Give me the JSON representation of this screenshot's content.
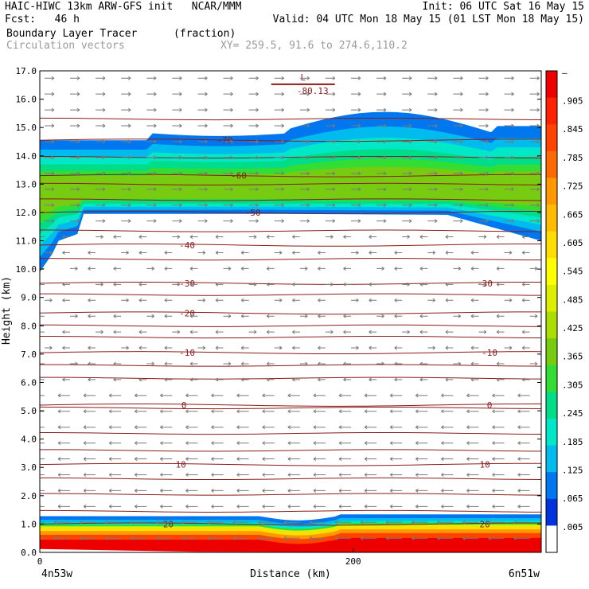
{
  "header": {
    "left_line1": "HAIC-HIWC 13km ARW-GFS init   NCAR/MMM",
    "left_line2": "Fcst:   46 h",
    "right_line1": "Init: 06 UTC Sat 16 May 15",
    "right_line2": "Valid: 04 UTC Mon 18 May 15 (01 LST Mon 18 May 15)",
    "field_name": "Boundary Layer Tracer",
    "field_units": "(fraction)",
    "vector_name": "Circulation vectors",
    "xy_label": "XY= 259.5, 91.6 to 274.6,110.2"
  },
  "chart_data": {
    "type": "heatmap",
    "title": "Boundary Layer Tracer",
    "ylabel": "Height (km)",
    "xlabel": "Distance (km)",
    "ylim": [
      0,
      17
    ],
    "xlim": [
      0,
      320
    ],
    "y_ticks": [
      "0.0",
      "1.0",
      "2.0",
      "3.0",
      "4.0",
      "5.0",
      "6.0",
      "7.0",
      "8.0",
      "9.0",
      "10.0",
      "11.0",
      "12.0",
      "13.0",
      "14.0",
      "15.0",
      "16.0",
      "17.0"
    ],
    "x_ticks": [
      {
        "value": 0,
        "label": "0"
      },
      {
        "value": 200,
        "label": "200"
      }
    ],
    "x_endpoints": {
      "left": "4n53w",
      "right": "6n51w"
    },
    "colorbar_labels": [
      "–",
      ".905",
      ".845",
      ".785",
      ".725",
      ".665",
      ".605",
      ".545",
      ".485",
      ".425",
      ".365",
      ".305",
      ".245",
      ".185",
      ".125",
      ".065",
      ".005"
    ],
    "colorbar_colors": [
      "#ee0000",
      "#ff2200",
      "#ff4400",
      "#ff6a00",
      "#ff9900",
      "#ffbb00",
      "#ffdd00",
      "#ffff00",
      "#ddee00",
      "#aadd00",
      "#77cc11",
      "#33dd33",
      "#00dd88",
      "#00e8c8",
      "#00bbee",
      "#0077ee",
      "#0033dd",
      "#ffffff"
    ],
    "temperature_contours": [
      {
        "label": "-70",
        "y": 14.55
      },
      {
        "label": "-60",
        "y": 13.3
      },
      {
        "label": "-50",
        "y": 12.0
      },
      {
        "label": "-40",
        "y": 10.85
      },
      {
        "label": "-30",
        "y": 9.5
      },
      {
        "label": "-20",
        "y": 8.45
      },
      {
        "label": "-10",
        "y": 7.05
      },
      {
        "label": "0",
        "y": 5.2
      },
      {
        "label": "10",
        "y": 3.1
      },
      {
        "label": "20",
        "y": 1.0
      }
    ],
    "contour_label_positions": [
      {
        "label": "-70",
        "x": 118
      },
      {
        "label": "-60",
        "x": 127
      },
      {
        "label": "-50",
        "x": 136
      },
      {
        "label": "-40",
        "x": 94
      },
      {
        "label": "-30",
        "x": 94
      },
      {
        "label": "-30",
        "x": 284
      },
      {
        "label": "-20",
        "x": 94
      },
      {
        "label": "-10",
        "x": 94
      },
      {
        "label": "-10",
        "x": 287
      },
      {
        "label": "0",
        "x": 92
      },
      {
        "label": "0",
        "x": 287
      },
      {
        "label": "10",
        "x": 90
      },
      {
        "label": "10",
        "x": 284
      },
      {
        "label": "20",
        "x": 82
      },
      {
        "label": "20",
        "x": 284
      }
    ],
    "low_marker": {
      "symbol": "L",
      "value": "-80.13",
      "x": 168,
      "y": 16.75
    }
  }
}
